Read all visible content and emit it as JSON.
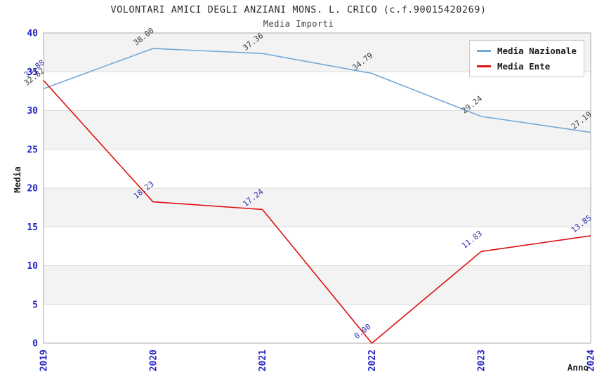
{
  "chart_data": {
    "type": "line",
    "title": "VOLONTARI AMICI DEGLI ANZIANI MONS. L. CRICO (c.f.90015420269)",
    "subtitle": "Media Importi",
    "xlabel": "Anno",
    "ylabel": "Media",
    "categories": [
      "2019",
      "2020",
      "2021",
      "2022",
      "2023",
      "2024"
    ],
    "y_ticks": [
      0,
      5,
      10,
      15,
      20,
      25,
      30,
      35,
      40
    ],
    "ylim": [
      0,
      40
    ],
    "grid": "horizontal-bands",
    "legend_position": "top-right",
    "series": [
      {
        "name": "Media Nazionale",
        "color": "#74a9d8",
        "label_color": "#3c3c3c",
        "values": [
          32.82,
          38.0,
          37.36,
          34.79,
          29.24,
          27.19
        ]
      },
      {
        "name": "Media Ente",
        "color": "#dd1111",
        "label_color": "#2d2db4",
        "values": [
          33.88,
          18.23,
          17.24,
          0.0,
          11.83,
          13.85
        ]
      }
    ],
    "colors": {
      "tick_label": "#2525c4",
      "band": "#f3f3f3",
      "gridline": "#dcdcdc",
      "border": "#a9a9a9",
      "title": "#2b2b2b"
    }
  }
}
